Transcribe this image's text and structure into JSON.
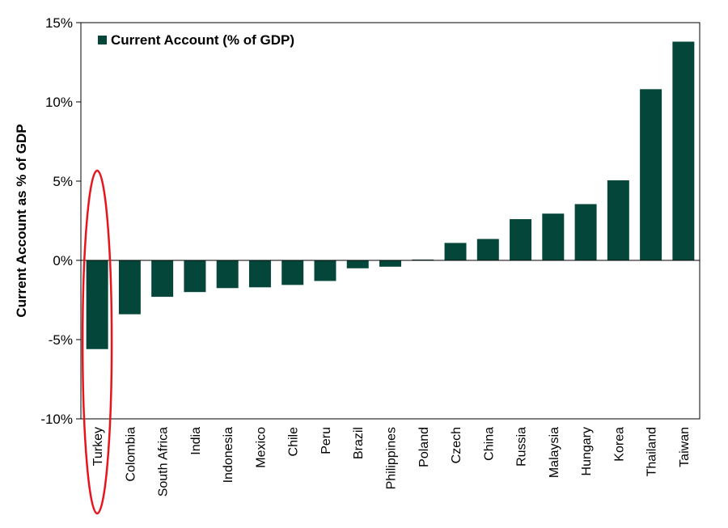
{
  "chart_data": {
    "type": "bar",
    "categories": [
      "Turkey",
      "Colombia",
      "South Africa",
      "India",
      "Indonesia",
      "Mexico",
      "Chile",
      "Peru",
      "Brazil",
      "Philippines",
      "Poland",
      "Czech",
      "China",
      "Russia",
      "Malaysia",
      "Hungary",
      "Korea",
      "Thailand",
      "Taiwan"
    ],
    "series": [
      {
        "name": "Current Account (% of GDP)",
        "values": [
          -5.6,
          -3.4,
          -2.3,
          -2.0,
          -1.75,
          -1.7,
          -1.55,
          -1.3,
          -0.5,
          -0.4,
          0.05,
          1.1,
          1.35,
          2.6,
          2.95,
          3.55,
          5.05,
          10.8,
          13.8
        ]
      }
    ],
    "ylabel": "Current Account  as % of GDP",
    "xlabel": "",
    "ylim": [
      -10,
      15
    ],
    "yticks": [
      -10,
      -5,
      0,
      5,
      10,
      15
    ],
    "ytick_labels": [
      "-10%",
      "-5%",
      "0%",
      "5%",
      "10%",
      "15%"
    ],
    "legend_position": "top-left",
    "grid": false,
    "highlight": {
      "category": "Turkey",
      "shape": "ellipse",
      "color": "#e8141b"
    },
    "colors": {
      "bar": "#04473a",
      "axis": "#000000",
      "frame": "#000000"
    }
  }
}
